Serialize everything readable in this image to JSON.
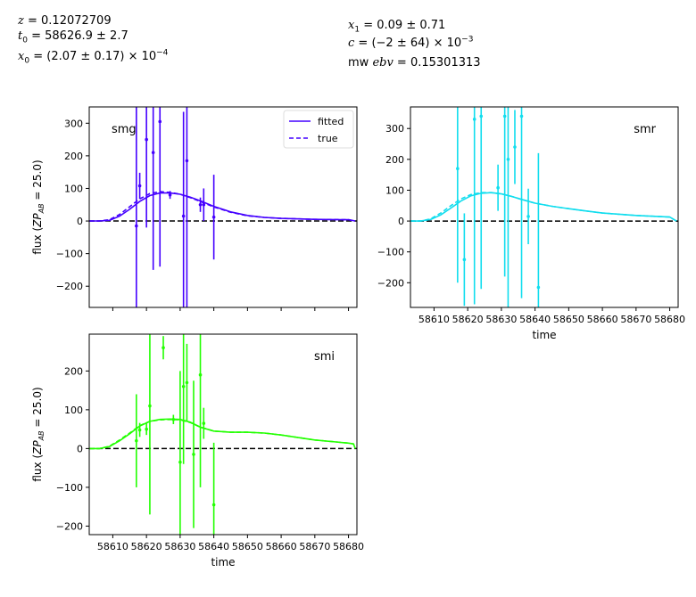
{
  "header": {
    "z": "0.12072709",
    "t0": "58626.9 ± 2.7",
    "x0": "(2.07 ± 0.17) × 10",
    "x0_exp": "−4",
    "x1": "0.09 ± 0.71",
    "c": "(−2 ± 64) × 10",
    "c_exp": "−3",
    "mwebv": "0.15301313"
  },
  "colors": {
    "smg": "#4400ff",
    "smr": "#11ddee",
    "smi": "#22ff00",
    "zero_line": "#000000"
  },
  "chart_data": [
    {
      "type": "line",
      "band": "smg",
      "xlim": [
        58603,
        58682.5
      ],
      "ylim": [
        -265,
        350
      ],
      "yticks": [
        -200,
        -100,
        0,
        100,
        200,
        300
      ],
      "xticks": [
        58610,
        58620,
        58630,
        58640,
        58650,
        58660,
        58670,
        58680
      ],
      "ylabel": "flux (ZP_AB = 25.0)",
      "xlabel": "",
      "show_xticklabels": false,
      "legend": {
        "position": "top-right",
        "entries": [
          "fitted",
          "true"
        ]
      },
      "series": [
        {
          "name": "fitted",
          "style": "solid",
          "x": [
            58603,
            58606,
            58609,
            58612,
            58615,
            58618,
            58621,
            58624,
            58627,
            58630,
            58633,
            58636,
            58640,
            58645,
            58650,
            58655,
            58660,
            58670,
            58680,
            58682
          ],
          "y": [
            0,
            0,
            2,
            15,
            36,
            60,
            78,
            86,
            86,
            82,
            73,
            62,
            45,
            28,
            17,
            11,
            8,
            5,
            4,
            0
          ]
        },
        {
          "name": "true",
          "style": "dashed",
          "x": [
            58603,
            58606,
            58609,
            58612,
            58615,
            58618,
            58621,
            58624,
            58627,
            58630,
            58633,
            58636,
            58640,
            58645,
            58650,
            58655,
            58660,
            58670,
            58680,
            58682
          ],
          "y": [
            0,
            0,
            4,
            20,
            44,
            68,
            84,
            90,
            88,
            82,
            72,
            60,
            43,
            27,
            16,
            11,
            8,
            5,
            4,
            0
          ]
        }
      ],
      "points": [
        {
          "x": 58617,
          "y": -15,
          "err": 640
        },
        {
          "x": 58618,
          "y": 108,
          "err": 40
        },
        {
          "x": 58620,
          "y": 250,
          "err": 270
        },
        {
          "x": 58622,
          "y": 210,
          "err": 360
        },
        {
          "x": 58624,
          "y": 305,
          "err": 445
        },
        {
          "x": 58627,
          "y": 80,
          "err": 12
        },
        {
          "x": 58631,
          "y": 15,
          "err": 320
        },
        {
          "x": 58632,
          "y": 185,
          "err": 480
        },
        {
          "x": 58636,
          "y": 50,
          "err": 22
        },
        {
          "x": 58637,
          "y": 50,
          "err": 50
        },
        {
          "x": 58640,
          "y": 12,
          "err": 130
        }
      ],
      "label": "smg"
    },
    {
      "type": "line",
      "band": "smr",
      "xlim": [
        58603,
        58682.5
      ],
      "ylim": [
        -280,
        370
      ],
      "yticks": [
        -200,
        -100,
        0,
        100,
        200,
        300
      ],
      "xticks": [
        58610,
        58620,
        58630,
        58640,
        58650,
        58660,
        58670,
        58680
      ],
      "ylabel": "",
      "xlabel": "time",
      "show_xticklabels": true,
      "legend": null,
      "series": [
        {
          "name": "fitted",
          "style": "solid",
          "x": [
            58603,
            58606,
            58609,
            58612,
            58615,
            58618,
            58621,
            58624,
            58627,
            58630,
            58633,
            58636,
            58640,
            58645,
            58650,
            58655,
            58660,
            58670,
            58680,
            58682
          ],
          "y": [
            0,
            0,
            5,
            20,
            42,
            65,
            82,
            90,
            92,
            88,
            80,
            70,
            58,
            48,
            40,
            33,
            26,
            18,
            13,
            0
          ]
        },
        {
          "name": "true",
          "style": "dashed",
          "x": [
            58603,
            58606,
            58609,
            58612,
            58615,
            58618,
            58621,
            58624,
            58627,
            58630,
            58633,
            58636,
            58640,
            58645,
            58650,
            58655,
            58660,
            58670,
            58680,
            58682
          ],
          "y": [
            0,
            0,
            7,
            26,
            50,
            72,
            86,
            92,
            92,
            88,
            80,
            70,
            58,
            48,
            40,
            33,
            26,
            18,
            13,
            0
          ]
        }
      ],
      "points": [
        {
          "x": 58617,
          "y": 170,
          "err": 370
        },
        {
          "x": 58619,
          "y": -125,
          "err": 150
        },
        {
          "x": 58622,
          "y": 330,
          "err": 600
        },
        {
          "x": 58624,
          "y": 340,
          "err": 560
        },
        {
          "x": 58629,
          "y": 108,
          "err": 75
        },
        {
          "x": 58631,
          "y": 340,
          "err": 520
        },
        {
          "x": 58632,
          "y": 200,
          "err": 500
        },
        {
          "x": 58634,
          "y": 240,
          "err": 120
        },
        {
          "x": 58636,
          "y": 340,
          "err": 590
        },
        {
          "x": 58638,
          "y": 15,
          "err": 90
        },
        {
          "x": 58641,
          "y": -215,
          "err": 435
        }
      ],
      "label": "smr"
    },
    {
      "type": "line",
      "band": "smi",
      "xlim": [
        58603,
        58682.5
      ],
      "ylim": [
        -222,
        295
      ],
      "yticks": [
        -200,
        -100,
        0,
        100,
        200
      ],
      "xticks": [
        58610,
        58620,
        58630,
        58640,
        58650,
        58660,
        58670,
        58680
      ],
      "ylabel": "flux (ZP_AB = 25.0)",
      "xlabel": "time",
      "show_xticklabels": true,
      "legend": null,
      "series": [
        {
          "name": "fitted",
          "style": "solid",
          "x": [
            58603,
            58606,
            58609,
            58612,
            58615,
            58618,
            58621,
            58624,
            58627,
            58630,
            58633,
            58636,
            58640,
            58645,
            58650,
            58655,
            58660,
            58670,
            58680,
            58681.5,
            58682
          ],
          "y": [
            0,
            0,
            5,
            20,
            38,
            58,
            70,
            75,
            76,
            75,
            68,
            55,
            45,
            42,
            42,
            40,
            35,
            22,
            14,
            12,
            0
          ]
        },
        {
          "name": "true",
          "style": "dashed",
          "x": [
            58603,
            58606,
            58609,
            58612,
            58615,
            58618,
            58621,
            58624,
            58627,
            58630,
            58633,
            58636,
            58640,
            58645,
            58650,
            58655,
            58660,
            58670,
            58680,
            58681.5,
            58682
          ],
          "y": [
            0,
            0,
            6,
            22,
            40,
            59,
            70,
            74,
            75,
            74,
            67,
            55,
            45,
            42,
            42,
            40,
            35,
            22,
            14,
            12,
            0
          ]
        }
      ],
      "points": [
        {
          "x": 58617,
          "y": 20,
          "err": 120
        },
        {
          "x": 58618,
          "y": 48,
          "err": 18
        },
        {
          "x": 58620,
          "y": 50,
          "err": 15
        },
        {
          "x": 58621,
          "y": 110,
          "err": 280
        },
        {
          "x": 58625,
          "y": 260,
          "err": 30
        },
        {
          "x": 58628,
          "y": 75,
          "err": 12
        },
        {
          "x": 58630,
          "y": -35,
          "err": 235
        },
        {
          "x": 58631,
          "y": 160,
          "err": 200
        },
        {
          "x": 58632,
          "y": 170,
          "err": 100
        },
        {
          "x": 58634,
          "y": -15,
          "err": 190
        },
        {
          "x": 58636,
          "y": 190,
          "err": 290
        },
        {
          "x": 58637,
          "y": 65,
          "err": 40
        },
        {
          "x": 58640,
          "y": -145,
          "err": 160
        }
      ],
      "label": "smi"
    }
  ]
}
